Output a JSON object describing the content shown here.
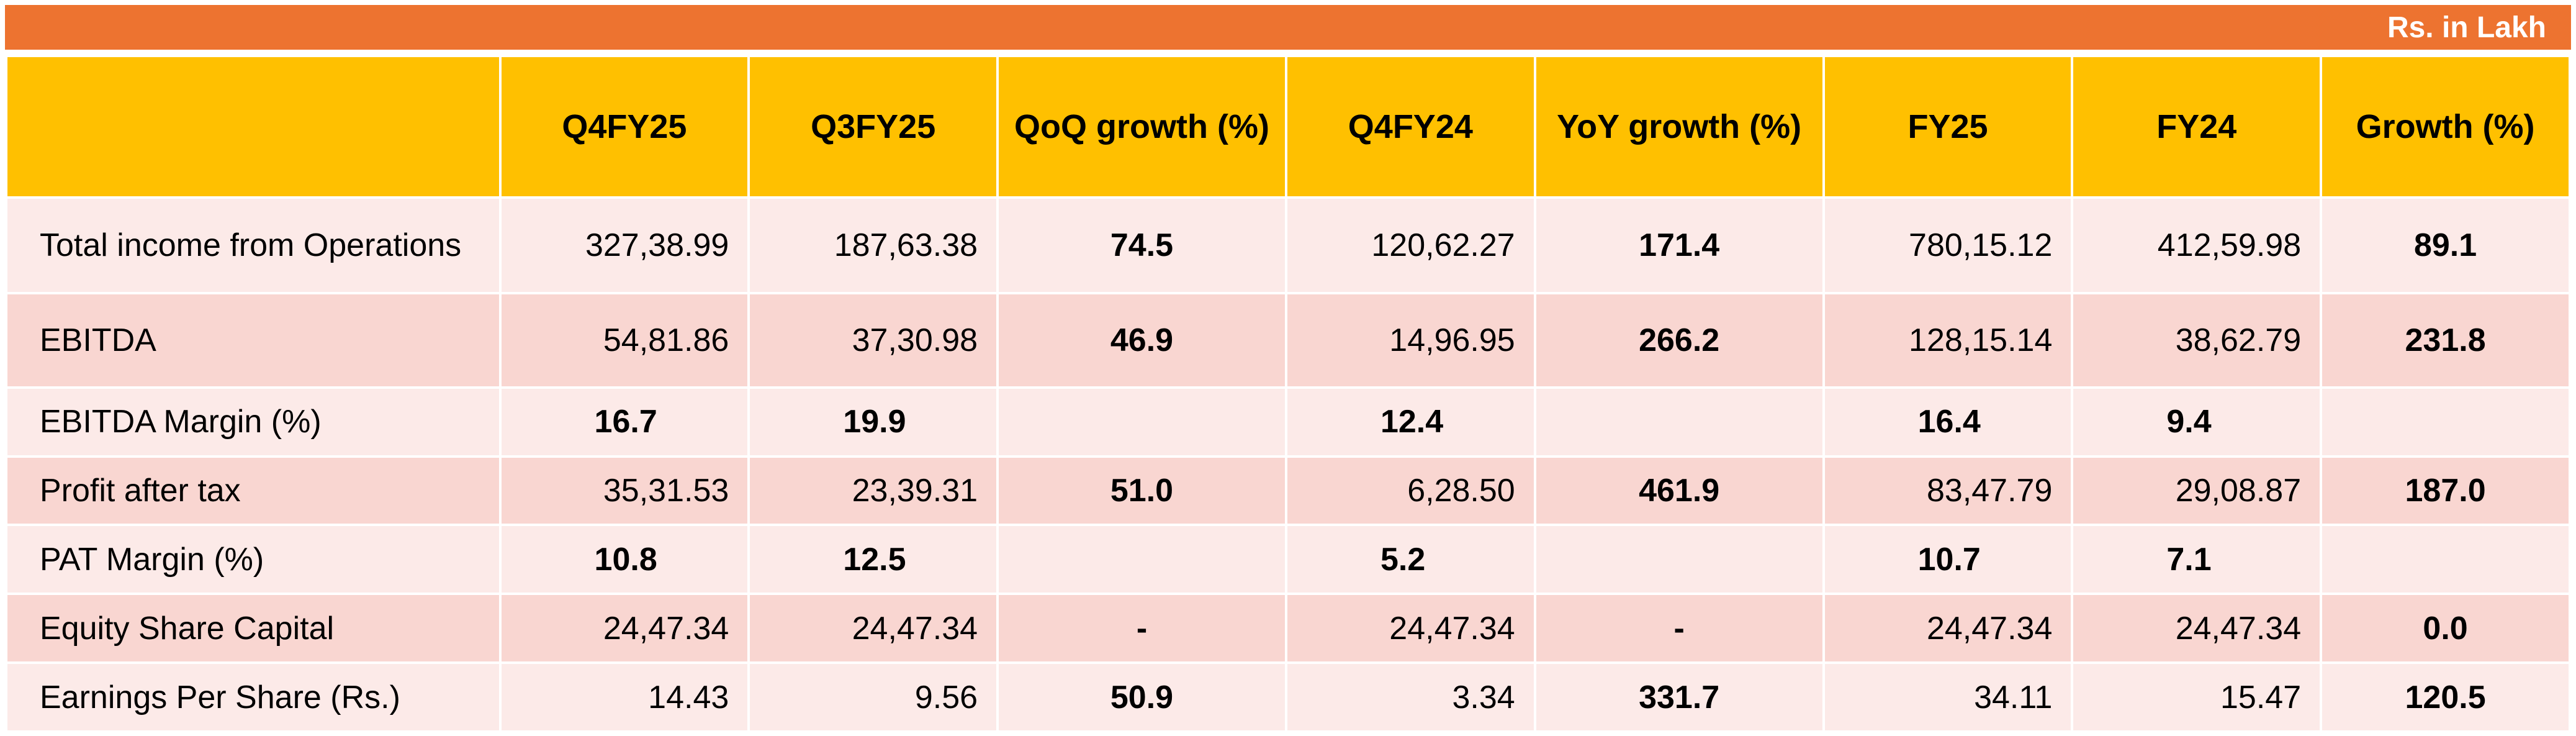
{
  "unit_label": "Rs. in Lakh",
  "columns": [
    "",
    "Q4FY25",
    "Q3FY25",
    "QoQ growth (%)",
    "Q4FY24",
    "YoY growth (%)",
    "FY25",
    "FY24",
    "Growth (%)"
  ],
  "rows": [
    {
      "label": "Total income from Operations",
      "cells": [
        "327,38.99",
        "187,63.38",
        "74.5",
        "120,62.27",
        "171.4",
        "780,15.12",
        "412,59.98",
        "89.1"
      ]
    },
    {
      "label": "EBITDA",
      "cells": [
        "54,81.86",
        "37,30.98",
        "46.9",
        "14,96.95",
        "266.2",
        "128,15.14",
        "38,62.79",
        "231.8"
      ]
    },
    {
      "label": "EBITDA Margin (%)",
      "cells": [
        "16.7",
        "19.9",
        "",
        "12.4",
        "",
        "16.4",
        "9.4",
        ""
      ]
    },
    {
      "label": "Profit after tax",
      "cells": [
        "35,31.53",
        "23,39.31",
        "51.0",
        "6,28.50",
        "461.9",
        "83,47.79",
        "29,08.87",
        "187.0"
      ]
    },
    {
      "label": "PAT Margin (%)",
      "cells": [
        "10.8",
        "12.5",
        "",
        "5.2",
        "",
        "10.7",
        "7.1",
        ""
      ]
    },
    {
      "label": "Equity Share Capital",
      "cells": [
        "24,47.34",
        "24,47.34",
        "-",
        "24,47.34",
        "-",
        "24,47.34",
        "24,47.34",
        "0.0"
      ]
    },
    {
      "label": "Earnings Per Share (Rs.)",
      "cells": [
        "14.43",
        "9.56",
        "50.9",
        "3.34",
        "331.7",
        "34.11",
        "15.47",
        "120.5"
      ]
    }
  ]
}
